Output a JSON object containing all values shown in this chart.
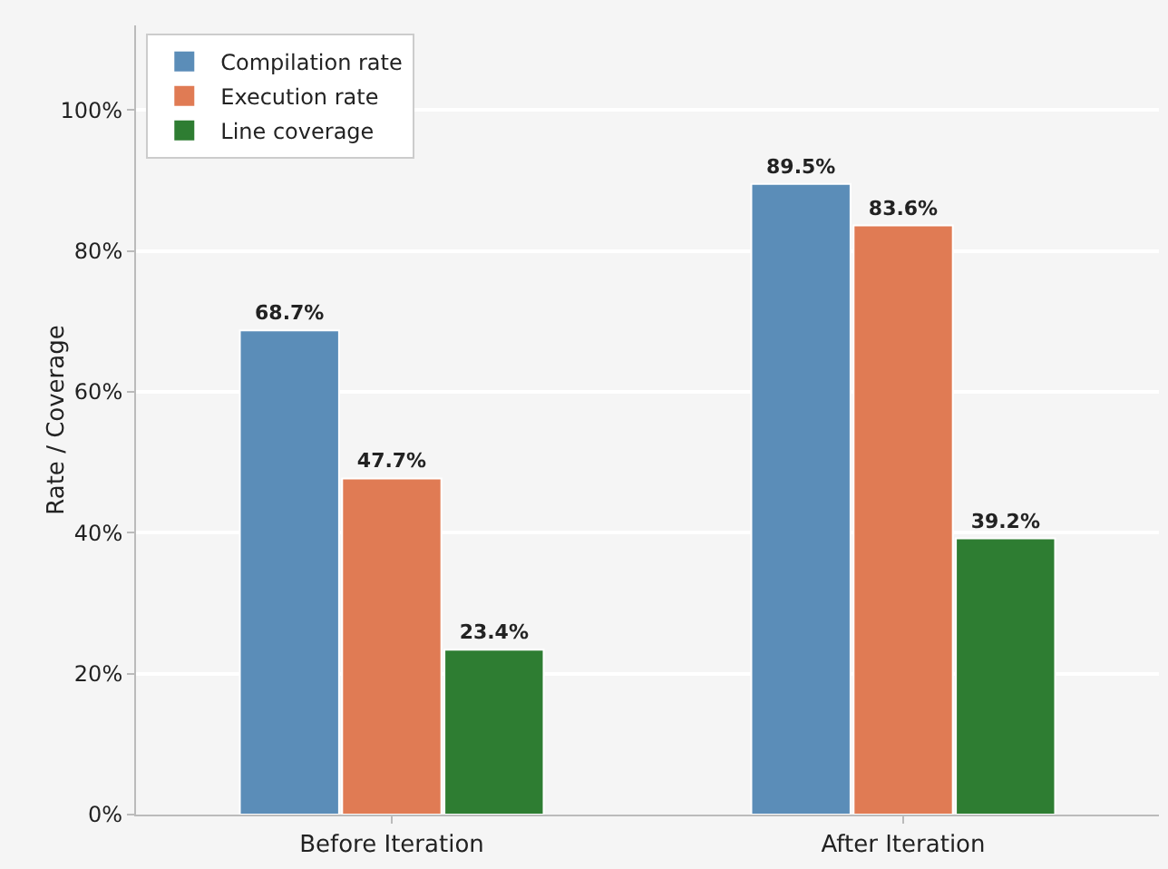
{
  "chart_data": {
    "type": "bar",
    "ylabel": "Rate / Coverage",
    "categories": [
      "Before Iteration",
      "After Iteration"
    ],
    "series": [
      {
        "name": "Compilation rate",
        "color": "#5b8db8",
        "values": [
          68.7,
          89.5
        ],
        "value_labels": [
          "68.7%",
          "89.5%"
        ]
      },
      {
        "name": "Execution rate",
        "color": "#e07b54",
        "values": [
          47.7,
          83.6
        ],
        "value_labels": [
          "47.7%",
          "83.6%"
        ]
      },
      {
        "name": "Line coverage",
        "color": "#2e7d32",
        "values": [
          23.4,
          39.2
        ],
        "value_labels": [
          "23.4%",
          "39.2%"
        ]
      }
    ],
    "ylim": [
      0,
      112
    ],
    "yticks": [
      {
        "value": 0,
        "label": "0%"
      },
      {
        "value": 20,
        "label": "20%"
      },
      {
        "value": 40,
        "label": "40%"
      },
      {
        "value": 60,
        "label": "60%"
      },
      {
        "value": 80,
        "label": "80%"
      },
      {
        "value": 100,
        "label": "100%"
      }
    ],
    "grid": "y",
    "legend": "top left"
  }
}
